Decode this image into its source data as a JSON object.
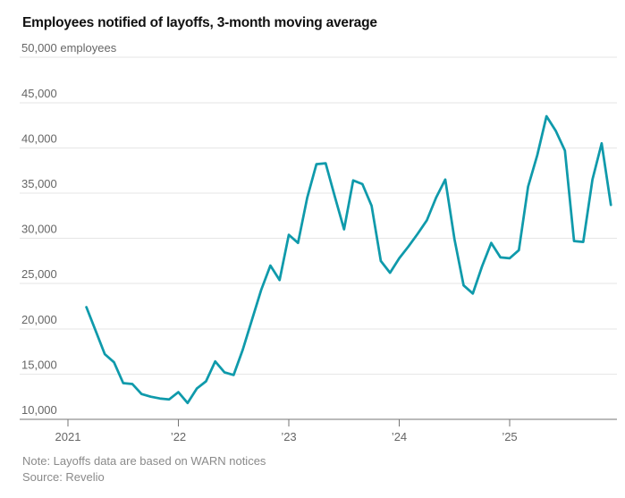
{
  "title": "Employees notified of layoffs, 3-month moving average",
  "note": "Note: Layoffs data are based on WARN notices",
  "source": "Source: Revelio",
  "colors": {
    "line": "#0f9aab",
    "title_text": "#111111",
    "axis_label": "#666666",
    "gridline": "#e6e6e6",
    "baseline": "#757575",
    "tick": "#757575",
    "note_text": "#8a8a8a"
  },
  "chart_data": {
    "type": "line",
    "title": "Employees notified of layoffs, 3-month moving average",
    "ylabel": "employees",
    "ylim": [
      10000,
      50000
    ],
    "y_tick_interval": 5000,
    "grid": "horizontal",
    "legend": "none",
    "x_origin": "2021-01",
    "y_ticks": [
      {
        "value": 10000,
        "label": "10,000"
      },
      {
        "value": 15000,
        "label": "15,000"
      },
      {
        "value": 20000,
        "label": "20,000"
      },
      {
        "value": 25000,
        "label": "25,000"
      },
      {
        "value": 30000,
        "label": "30,000"
      },
      {
        "value": 35000,
        "label": "35,000"
      },
      {
        "value": 40000,
        "label": "40,000"
      },
      {
        "value": 45000,
        "label": "45,000"
      },
      {
        "value": 50000,
        "label": "50,000 employees"
      }
    ],
    "x_ticks": [
      {
        "month": "2021-01",
        "label": "2021"
      },
      {
        "month": "2022-01",
        "label": "’22"
      },
      {
        "month": "2023-01",
        "label": "’23"
      },
      {
        "month": "2024-01",
        "label": "’24"
      },
      {
        "month": "2025-01",
        "label": "’25"
      }
    ],
    "months": [
      "2021-03",
      "2021-04",
      "2021-05",
      "2021-06",
      "2021-07",
      "2021-08",
      "2021-09",
      "2021-10",
      "2021-11",
      "2021-12",
      "2022-01",
      "2022-02",
      "2022-03",
      "2022-04",
      "2022-05",
      "2022-06",
      "2022-07",
      "2022-08",
      "2022-09",
      "2022-10",
      "2022-11",
      "2022-12",
      "2023-01",
      "2023-02",
      "2023-03",
      "2023-04",
      "2023-05",
      "2023-06",
      "2023-07",
      "2023-08",
      "2023-09",
      "2023-10",
      "2023-11",
      "2023-12",
      "2024-01",
      "2024-02",
      "2024-03",
      "2024-04",
      "2024-05",
      "2024-06",
      "2024-07",
      "2024-08",
      "2024-09",
      "2024-10",
      "2024-11",
      "2024-12",
      "2025-01",
      "2025-02",
      "2025-03",
      "2025-04",
      "2025-05",
      "2025-06",
      "2025-07",
      "2025-08",
      "2025-09",
      "2025-10",
      "2025-11",
      "2025-12"
    ],
    "series": [
      {
        "name": "Employees notified of layoffs, 3-month moving average",
        "color": "#0f9aab",
        "values": [
          22400,
          19800,
          17200,
          16300,
          14000,
          13900,
          12800,
          12500,
          12300,
          12200,
          13000,
          11800,
          13400,
          14200,
          16400,
          15200,
          14900,
          17700,
          21000,
          24300,
          27000,
          25400,
          30400,
          29500,
          34500,
          38200,
          38300,
          34600,
          31000,
          36400,
          36000,
          33600,
          27500,
          26200,
          27800,
          29100,
          30500,
          32000,
          34500,
          36500,
          29900,
          24800,
          23900,
          26900,
          29500,
          27900,
          27800,
          28700,
          35700,
          39200,
          43500,
          41900,
          39700,
          29700,
          29600,
          36500,
          40500,
          33700
        ]
      }
    ]
  }
}
